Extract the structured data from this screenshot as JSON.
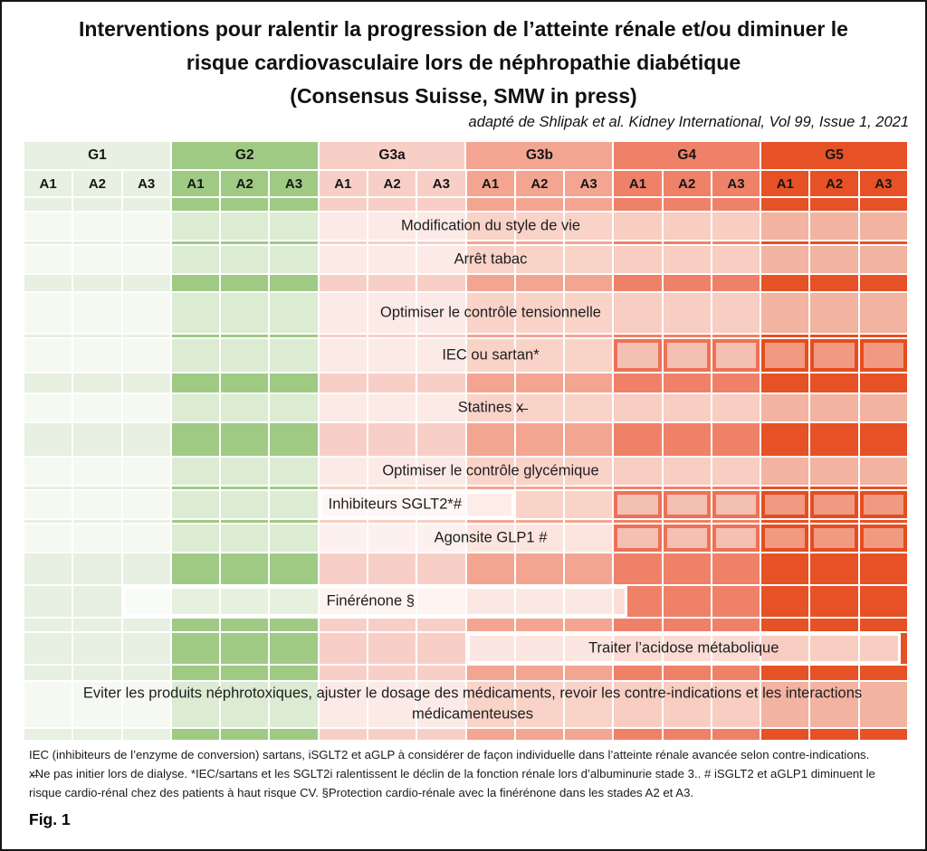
{
  "figure": {
    "title_lines": [
      "Interventions pour ralentir la progression de l’atteinte rénale et/ou diminuer le",
      "risque cardiovasculaire lors de néphropathie diabétique",
      "(Consensus Suisse, SMW in press)"
    ],
    "subtitle": "adapté de Shlipak et al. Kidney International, Vol 99, Issue 1, 2021",
    "footnote": "IEC (inhibiteurs de l’enzyme de conversion) sartans, iSGLT2 et aGLP à considérer de façon individuelle dans l’atteinte rénale avancée selon contre-indications. x̶Ne pas initier lors de dialyse. *IEC/sartans et les SGLT2i ralentissent le déclin de la fonction rénale lors d’albuminurie stade 3.. # iSGLT2 et aGLP1 diminuent le risque cardio-rénal chez des patients à haut risque CV. §Protection cardio-rénale avec la finérénone dans les stades A2 et A3.",
    "fig_label": "Fig. 1"
  },
  "chart_data": {
    "type": "heatmap",
    "title": "Interventions pour ralentir la progression de l’atteinte rénale et/ou diminuer le risque cardiovasculaire lors de néphropathie diabétique (Consensus Suisse, SMW in press)",
    "source": "adapté de Shlipak et al. Kidney International, Vol 99, Issue 1, 2021",
    "legend_position": "none",
    "column_groups": [
      {
        "label": "G1",
        "color": "#e7f0e1",
        "band": "#f5f9f2",
        "box": "#fafcf8"
      },
      {
        "label": "G2",
        "color": "#9fca84",
        "band": "#dcecd3",
        "box": "#edf4e7"
      },
      {
        "label": "G3a",
        "color": "#f8cfc6",
        "band": "#fceae6",
        "box": "#fdf1ef"
      },
      {
        "label": "G3b",
        "color": "#f3a592",
        "band": "#fad3c8",
        "box": "#fce5de"
      },
      {
        "label": "G4",
        "color": "#ee8168",
        "band": "#f8cdc2",
        "box": "#fcded5",
        "frame_border": "#ec7257",
        "frame_fill": "#f4c0b2"
      },
      {
        "label": "G5",
        "color": "#e65126",
        "band": "#f2b3a1",
        "box": "#facfc2",
        "frame_border": "#e54d20",
        "frame_fill": "#f09a81"
      }
    ],
    "subcolumns": [
      "A1",
      "A2",
      "A3"
    ],
    "rows": [
      {
        "id": "modification",
        "label": "Modification du style de vie",
        "applies": "G1A1–G5A3"
      },
      {
        "id": "arret",
        "label": "Arrêt tabac",
        "applies": "G1A1–G5A3"
      },
      {
        "id": "tensionnelle",
        "label": "Optimiser le contrôle tensionnelle",
        "applies": "G1A1–G5A3"
      },
      {
        "id": "iec",
        "label": "IEC ou sartan*",
        "applies": "G1A1–G3bA3",
        "framed_cells": "G4A1–G5A3"
      },
      {
        "id": "statines",
        "label": "Statines x̶",
        "applies": "G1A1–G5A3"
      },
      {
        "id": "glycemique",
        "label": "Optimiser le contrôle glycémique",
        "applies": "G1A1–G5A3"
      },
      {
        "id": "sglt2",
        "label": "Inhibiteurs SGLT2*#",
        "applies": "G3aA1–G3bA1",
        "framed_cells": "G4A1–G5A3"
      },
      {
        "id": "glp1",
        "label": "Agonsite  GLP1 #",
        "applies": "G3aA1–G3bA3",
        "framed_cells": "G4A1–G5A3"
      },
      {
        "id": "finerenone",
        "label": "Finérénone §",
        "applies": "G1A3–G4A1 (partiel)"
      },
      {
        "id": "acidose",
        "label": "Traiter l’acidose métabolique",
        "applies": "G3bA1–G5A3"
      },
      {
        "id": "eviter",
        "label": "Eviter les produits néphrotoxiques, ajuster le dosage des médicaments, revoir les contre-indications et les interactions médicamenteuses",
        "applies": "G1A1–G5A3"
      }
    ]
  }
}
